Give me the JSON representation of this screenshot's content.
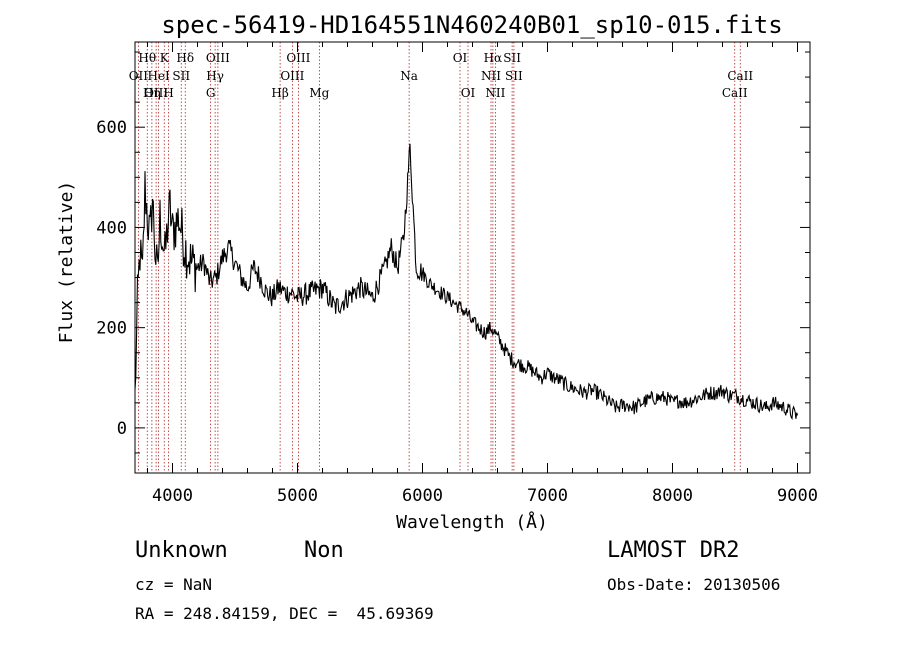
{
  "info": {
    "class_label": "Unknown",
    "subclass_label": "Non",
    "redshift_text": "cz = NaN",
    "coords_text": "RA = 248.84159, DEC =  45.69369",
    "survey_label": "LAMOST DR2",
    "obs_date_text": "Obs-Date: 20130506"
  },
  "chart_data": {
    "type": "line",
    "title": "spec-56419-HD164551N460240B01_sp10-015.fits",
    "xlabel": "Wavelength (Å)",
    "ylabel": "Flux (relative)",
    "xlim": [
      3700,
      9100
    ],
    "ylim": [
      -90,
      770
    ],
    "x_ticks": [
      4000,
      5000,
      6000,
      7000,
      8000,
      9000
    ],
    "y_ticks": [
      0,
      200,
      400,
      600
    ],
    "grid": false,
    "colors": {
      "line": "#000000",
      "marker_line": "#b22222"
    },
    "series": [
      {
        "x": [
          3700,
          3720,
          3740,
          3760,
          3780,
          3800,
          3820,
          3840,
          3860,
          3880,
          3900,
          3920,
          3940,
          3960,
          3980,
          4000,
          4050,
          4100,
          4150,
          4200,
          4250,
          4300,
          4350,
          4400,
          4450,
          4500,
          4550,
          4600,
          4650,
          4700,
          4750,
          4800,
          4850,
          4900,
          4950,
          5000,
          5100,
          5200,
          5300,
          5400,
          5500,
          5600,
          5700,
          5750,
          5800,
          5850,
          5900,
          5950,
          6000,
          6050,
          6100,
          6150,
          6200,
          6250,
          6300,
          6350,
          6400,
          6450,
          6500,
          6550,
          6600,
          6650,
          6700,
          6750,
          6800,
          6850,
          6900,
          6950,
          7000,
          7050,
          7100,
          7150,
          7200,
          7250,
          7300,
          7350,
          7400,
          7450,
          7500,
          7550,
          7600,
          7650,
          7700,
          7750,
          7800,
          7850,
          7900,
          7950,
          8000,
          8050,
          8100,
          8150,
          8200,
          8250,
          8300,
          8350,
          8400,
          8450,
          8500,
          8550,
          8600,
          8650,
          8700,
          8750,
          8800,
          8850,
          8900,
          8950,
          9000
        ],
        "y": [
          60,
          250,
          350,
          300,
          480,
          420,
          380,
          460,
          360,
          300,
          420,
          380,
          340,
          400,
          440,
          390,
          420,
          360,
          330,
          320,
          330,
          290,
          300,
          340,
          360,
          330,
          300,
          280,
          320,
          300,
          270,
          260,
          280,
          270,
          270,
          260,
          270,
          280,
          240,
          260,
          280,
          260,
          320,
          360,
          320,
          380,
          560,
          320,
          310,
          290,
          280,
          270,
          260,
          250,
          240,
          230,
          210,
          200,
          190,
          200,
          180,
          160,
          140,
          130,
          125,
          120,
          110,
          100,
          110,
          100,
          95,
          85,
          80,
          75,
          70,
          75,
          70,
          60,
          50,
          40,
          45,
          45,
          40,
          50,
          55,
          60,
          60,
          60,
          50,
          55,
          50,
          55,
          60,
          65,
          70,
          70,
          75,
          65,
          65,
          60,
          55,
          50,
          45,
          40,
          50,
          45,
          40,
          30,
          25
        ]
      }
    ],
    "line_markers": [
      {
        "name": "Hθ",
        "x": 3798,
        "row": 1
      },
      {
        "name": "OII",
        "x": 3727,
        "row": 2
      },
      {
        "name": "OIII",
        "x": 3869,
        "row": 3
      },
      {
        "name": "K",
        "x": 3934,
        "row": 1
      },
      {
        "name": "HeI",
        "x": 3889,
        "row": 2
      },
      {
        "name": "Hη",
        "x": 3835,
        "row": 3
      },
      {
        "name": "SII",
        "x": 4070,
        "row": 2
      },
      {
        "name": "H",
        "x": 3969,
        "row": 3
      },
      {
        "name": "Hδ",
        "x": 4102,
        "row": 1
      },
      {
        "name": "OIII",
        "x": 4363,
        "row": 1
      },
      {
        "name": "Hγ",
        "x": 4341,
        "row": 2
      },
      {
        "name": "G",
        "x": 4305,
        "row": 3
      },
      {
        "name": "Hβ",
        "x": 4861,
        "row": 3
      },
      {
        "name": "OIII",
        "x": 5007,
        "row": 1
      },
      {
        "name": "OIII",
        "x": 4959,
        "row": 2
      },
      {
        "name": "Mg",
        "x": 5175,
        "row": 3
      },
      {
        "name": "Na",
        "x": 5893,
        "row": 2
      },
      {
        "name": "OI",
        "x": 6300,
        "row": 1
      },
      {
        "name": "OI",
        "x": 6364,
        "row": 3
      },
      {
        "name": "Hα",
        "x": 6563,
        "row": 1
      },
      {
        "name": "NII",
        "x": 6548,
        "row": 2
      },
      {
        "name": "NII",
        "x": 6583,
        "row": 3
      },
      {
        "name": "SII",
        "x": 6717,
        "row": 1
      },
      {
        "name": "SII",
        "x": 6731,
        "row": 2
      },
      {
        "name": "CaII",
        "x": 8542,
        "row": 2
      },
      {
        "name": "CaII",
        "x": 8498,
        "row": 3
      }
    ]
  }
}
